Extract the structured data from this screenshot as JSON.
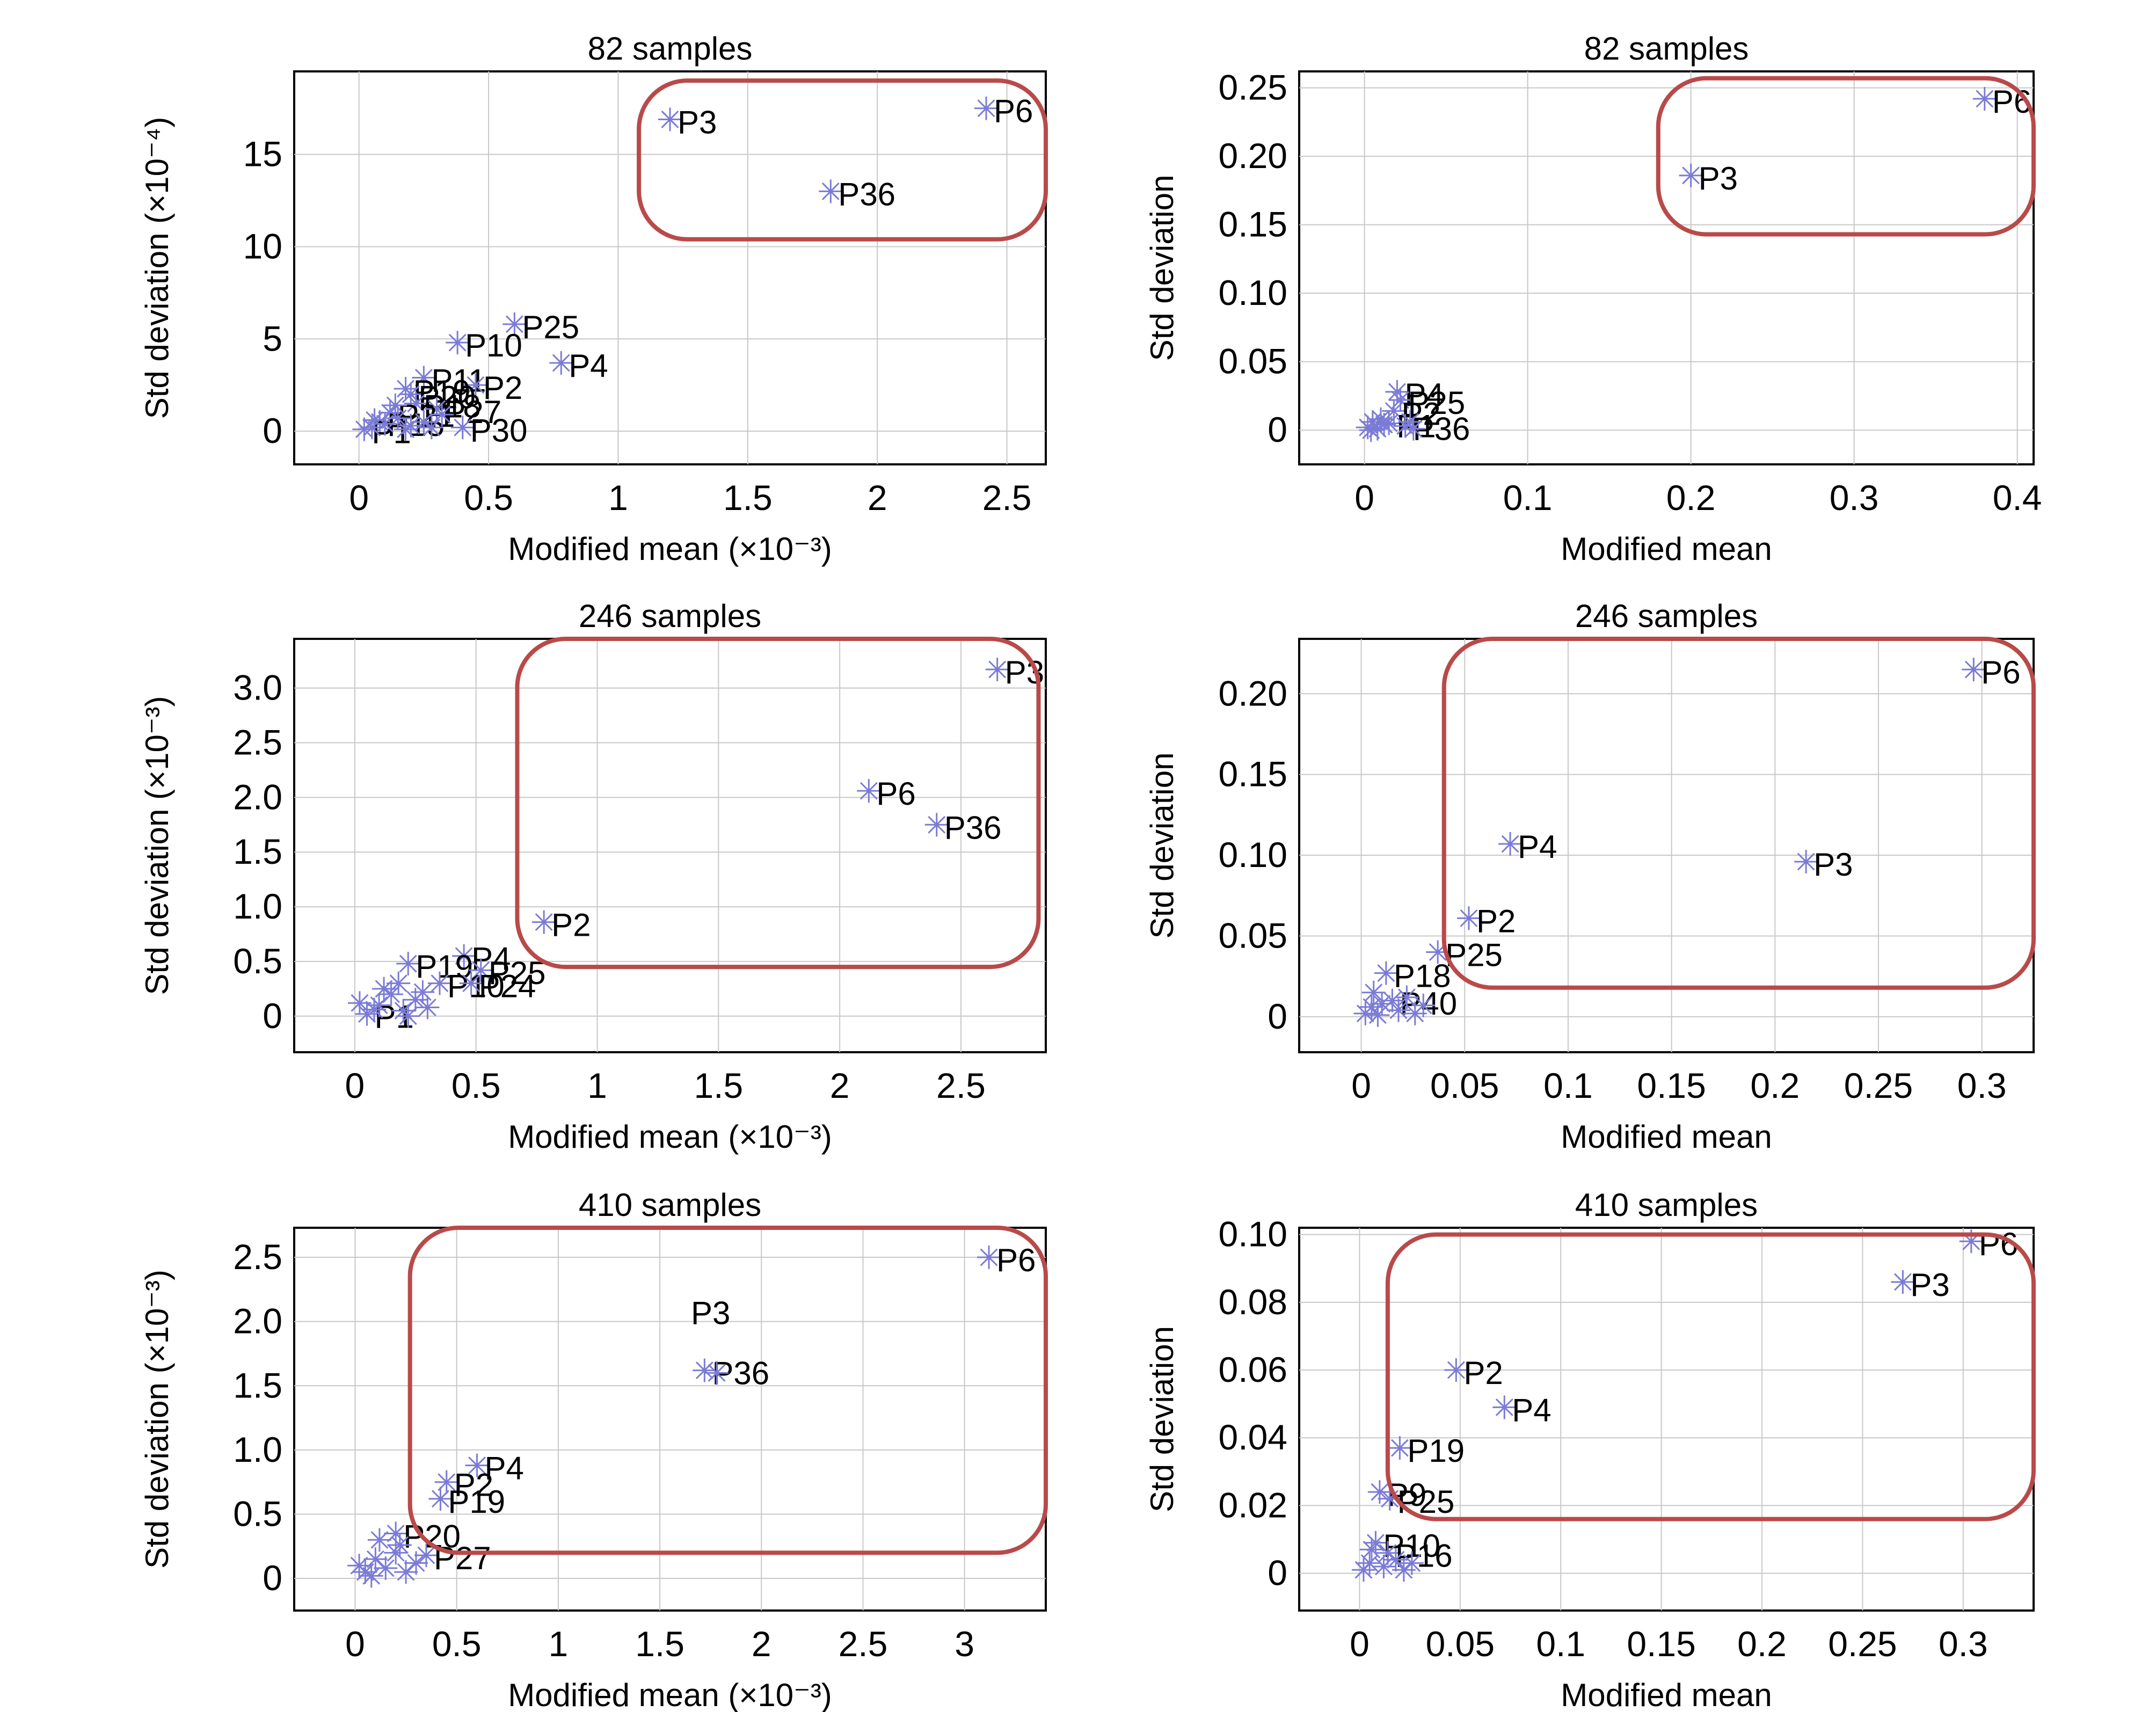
{
  "style": {
    "marker_color": "#7b7bd6",
    "highlight_box_color": "#b94a4a",
    "grid_color": "#c8c8c8",
    "marker": "asterisk"
  },
  "chart_data": [
    {
      "type": "scatter",
      "title": "82 samples",
      "xlabel": "Modified mean (×10⁻³)",
      "ylabel": "Std deviation (×10⁻⁴)",
      "xlim": [
        -0.25,
        2.65
      ],
      "ylim": [
        -1.8,
        19.5
      ],
      "xticks": [
        0,
        0.5,
        1,
        1.5,
        2,
        2.5
      ],
      "xtick_labels": [
        "0",
        "0.5",
        "1",
        "1.5",
        "2",
        "2.5"
      ],
      "yticks": [
        0,
        5,
        10,
        15
      ],
      "ytick_labels": [
        "0",
        "5",
        "10",
        "15"
      ],
      "grid": true,
      "highlight": {
        "x": [
          1.08,
          2.65
        ],
        "y": [
          10.4,
          19.0
        ]
      },
      "points": [
        {
          "x": 2.42,
          "y": 17.5,
          "label": "P6"
        },
        {
          "x": 1.2,
          "y": 16.9,
          "label": "P3"
        },
        {
          "x": 1.82,
          "y": 13.0,
          "label": "P36"
        },
        {
          "x": 0.6,
          "y": 5.8,
          "label": "P25"
        },
        {
          "x": 0.38,
          "y": 4.8,
          "label": "P10"
        },
        {
          "x": 0.78,
          "y": 3.7,
          "label": "P4"
        },
        {
          "x": 0.25,
          "y": 2.9,
          "label": "P11"
        },
        {
          "x": 0.45,
          "y": 2.5,
          "label": "P2"
        },
        {
          "x": 0.18,
          "y": 2.3,
          "label": "P19"
        },
        {
          "x": 0.2,
          "y": 2.0,
          "label": "P20"
        },
        {
          "x": 0.22,
          "y": 1.5,
          "label": "P18"
        },
        {
          "x": 0.3,
          "y": 1.2,
          "label": "P27"
        },
        {
          "x": 0.12,
          "y": 1.0,
          "label": "P21"
        },
        {
          "x": 0.4,
          "y": 0.2,
          "label": "P30"
        },
        {
          "x": 0.08,
          "y": 0.5,
          "label": "P15"
        },
        {
          "x": 0.02,
          "y": 0.1,
          "label": "P1"
        },
        {
          "x": 0.05,
          "y": 0.2,
          "label": ""
        },
        {
          "x": 0.1,
          "y": 0.4,
          "label": ""
        },
        {
          "x": 0.15,
          "y": 0.7,
          "label": ""
        },
        {
          "x": 0.2,
          "y": 0.3,
          "label": ""
        },
        {
          "x": 0.25,
          "y": 0.5,
          "label": ""
        },
        {
          "x": 0.18,
          "y": 0.1,
          "label": ""
        },
        {
          "x": 0.28,
          "y": 0.2,
          "label": ""
        },
        {
          "x": 0.06,
          "y": 0.6,
          "label": ""
        },
        {
          "x": 0.14,
          "y": 1.4,
          "label": ""
        },
        {
          "x": 0.32,
          "y": 0.9,
          "label": ""
        }
      ]
    },
    {
      "type": "scatter",
      "title": "82 samples",
      "xlabel": "Modified mean",
      "ylabel": "Std deviation",
      "xlim": [
        -0.04,
        0.41
      ],
      "ylim": [
        -0.025,
        0.262
      ],
      "xticks": [
        0,
        0.1,
        0.2,
        0.3,
        0.4
      ],
      "xtick_labels": [
        "0",
        "0.1",
        "0.2",
        "0.3",
        "0.4"
      ],
      "yticks": [
        0,
        0.05,
        0.1,
        0.15,
        0.2,
        0.25
      ],
      "ytick_labels": [
        "0",
        "0.05",
        "0.10",
        "0.15",
        "0.20",
        "0.25"
      ],
      "grid": true,
      "highlight": {
        "x": [
          0.18,
          0.41
        ],
        "y": [
          0.143,
          0.257
        ]
      },
      "points": [
        {
          "x": 0.38,
          "y": 0.242,
          "label": "P6"
        },
        {
          "x": 0.2,
          "y": 0.186,
          "label": "P3"
        },
        {
          "x": 0.02,
          "y": 0.028,
          "label": "P4"
        },
        {
          "x": 0.022,
          "y": 0.022,
          "label": "P25"
        },
        {
          "x": 0.018,
          "y": 0.014,
          "label": "P2"
        },
        {
          "x": 0.015,
          "y": 0.005,
          "label": "P1"
        },
        {
          "x": 0.025,
          "y": 0.003,
          "label": "P36"
        },
        {
          "x": 0.002,
          "y": 0.002,
          "label": ""
        },
        {
          "x": 0.005,
          "y": 0.006,
          "label": ""
        },
        {
          "x": 0.008,
          "y": 0.001,
          "label": ""
        },
        {
          "x": 0.01,
          "y": 0.008,
          "label": ""
        },
        {
          "x": 0.012,
          "y": 0.004,
          "label": ""
        },
        {
          "x": 0.004,
          "y": 0.0,
          "label": ""
        },
        {
          "x": 0.028,
          "y": 0.006,
          "label": ""
        },
        {
          "x": 0.03,
          "y": 0.001,
          "label": ""
        }
      ]
    },
    {
      "type": "scatter",
      "title": "246 samples",
      "xlabel": "Modified mean (×10⁻³)",
      "ylabel": "Std deviation (×10⁻³)",
      "xlim": [
        -0.25,
        2.85
      ],
      "ylim": [
        -0.33,
        3.45
      ],
      "xticks": [
        0,
        0.5,
        1,
        1.5,
        2,
        2.5
      ],
      "xtick_labels": [
        "0",
        "0.5",
        "1",
        "1.5",
        "2",
        "2.5"
      ],
      "yticks": [
        0,
        0.5,
        1.0,
        1.5,
        2.0,
        2.5,
        3.0
      ],
      "ytick_labels": [
        "0",
        "0.5",
        "1.0",
        "1.5",
        "2.0",
        "2.5",
        "3.0"
      ],
      "grid": true,
      "highlight": {
        "x": [
          0.67,
          2.82
        ],
        "y": [
          0.45,
          3.45
        ]
      },
      "points": [
        {
          "x": 2.65,
          "y": 3.17,
          "label": "P3"
        },
        {
          "x": 2.12,
          "y": 2.06,
          "label": "P6"
        },
        {
          "x": 2.4,
          "y": 1.75,
          "label": "P36"
        },
        {
          "x": 0.78,
          "y": 0.86,
          "label": "P2"
        },
        {
          "x": 0.45,
          "y": 0.55,
          "label": "P4"
        },
        {
          "x": 0.22,
          "y": 0.48,
          "label": "P19"
        },
        {
          "x": 0.52,
          "y": 0.42,
          "label": "P25"
        },
        {
          "x": 0.35,
          "y": 0.3,
          "label": "P10"
        },
        {
          "x": 0.48,
          "y": 0.3,
          "label": "P24"
        },
        {
          "x": 0.05,
          "y": 0.02,
          "label": "P1"
        },
        {
          "x": 0.1,
          "y": 0.1,
          "label": ""
        },
        {
          "x": 0.15,
          "y": 0.2,
          "label": ""
        },
        {
          "x": 0.2,
          "y": 0.05,
          "label": ""
        },
        {
          "x": 0.25,
          "y": 0.15,
          "label": ""
        },
        {
          "x": 0.3,
          "y": 0.08,
          "label": ""
        },
        {
          "x": 0.18,
          "y": 0.3,
          "label": ""
        },
        {
          "x": 0.12,
          "y": 0.25,
          "label": ""
        },
        {
          "x": 0.28,
          "y": 0.22,
          "label": ""
        },
        {
          "x": 0.08,
          "y": 0.06,
          "label": ""
        },
        {
          "x": 0.22,
          "y": 0.0,
          "label": ""
        },
        {
          "x": 0.02,
          "y": 0.12,
          "label": ""
        }
      ]
    },
    {
      "type": "scatter",
      "title": "246 samples",
      "xlabel": "Modified mean",
      "ylabel": "Std deviation",
      "xlim": [
        -0.03,
        0.325
      ],
      "ylim": [
        -0.022,
        0.234
      ],
      "xticks": [
        0,
        0.05,
        0.1,
        0.15,
        0.2,
        0.25,
        0.3
      ],
      "xtick_labels": [
        "0",
        "0.05",
        "0.1",
        "0.15",
        "0.2",
        "0.25",
        "0.3"
      ],
      "yticks": [
        0,
        0.05,
        0.1,
        0.15,
        0.2
      ],
      "ytick_labels": [
        "0",
        "0.05",
        "0.10",
        "0.15",
        "0.20"
      ],
      "grid": true,
      "highlight": {
        "x": [
          0.04,
          0.325
        ],
        "y": [
          0.018,
          0.234
        ]
      },
      "points": [
        {
          "x": 0.296,
          "y": 0.215,
          "label": "P6"
        },
        {
          "x": 0.072,
          "y": 0.107,
          "label": "P4"
        },
        {
          "x": 0.215,
          "y": 0.096,
          "label": "P3"
        },
        {
          "x": 0.052,
          "y": 0.061,
          "label": "P2"
        },
        {
          "x": 0.037,
          "y": 0.04,
          "label": "P25"
        },
        {
          "x": 0.012,
          "y": 0.027,
          "label": "P18"
        },
        {
          "x": 0.015,
          "y": 0.01,
          "label": "P40"
        },
        {
          "x": 0.002,
          "y": 0.002,
          "label": ""
        },
        {
          "x": 0.005,
          "y": 0.006,
          "label": ""
        },
        {
          "x": 0.008,
          "y": 0.001,
          "label": ""
        },
        {
          "x": 0.01,
          "y": 0.008,
          "label": ""
        },
        {
          "x": 0.018,
          "y": 0.004,
          "label": ""
        },
        {
          "x": 0.022,
          "y": 0.012,
          "label": ""
        },
        {
          "x": 0.026,
          "y": 0.002,
          "label": ""
        },
        {
          "x": 0.03,
          "y": 0.007,
          "label": ""
        },
        {
          "x": 0.006,
          "y": 0.015,
          "label": ""
        }
      ]
    },
    {
      "type": "scatter",
      "title": "410 samples",
      "xlabel": "Modified mean (×10⁻³)",
      "ylabel": "Std deviation (×10⁻³)",
      "xlim": [
        -0.3,
        3.4
      ],
      "ylim": [
        -0.25,
        2.73
      ],
      "xticks": [
        0,
        0.5,
        1,
        1.5,
        2,
        2.5,
        3
      ],
      "xtick_labels": [
        "0",
        "0.5",
        "1",
        "1.5",
        "2",
        "2.5",
        "3"
      ],
      "yticks": [
        0,
        0.5,
        1.0,
        1.5,
        2.0,
        2.5
      ],
      "ytick_labels": [
        "0",
        "0.5",
        "1.0",
        "1.5",
        "2.0",
        "2.5"
      ],
      "grid": true,
      "highlight": {
        "x": [
          0.27,
          3.4
        ],
        "y": [
          0.2,
          2.73
        ]
      },
      "points": [
        {
          "x": 3.12,
          "y": 2.5,
          "label": "P6"
        },
        {
          "x": 1.72,
          "y": 1.62,
          "label": "P36"
        },
        {
          "x": 1.78,
          "y": 1.6,
          "label": ""
        },
        {
          "x": 0.6,
          "y": 0.88,
          "label": "P4"
        },
        {
          "x": 0.45,
          "y": 0.75,
          "label": "P2"
        },
        {
          "x": 0.42,
          "y": 0.62,
          "label": "P19"
        },
        {
          "x": 0.2,
          "y": 0.35,
          "label": "P20"
        },
        {
          "x": 0.35,
          "y": 0.18,
          "label": "P27"
        },
        {
          "x": 0.05,
          "y": 0.05,
          "label": ""
        },
        {
          "x": 0.1,
          "y": 0.15,
          "label": ""
        },
        {
          "x": 0.15,
          "y": 0.08,
          "label": ""
        },
        {
          "x": 0.2,
          "y": 0.2,
          "label": ""
        },
        {
          "x": 0.25,
          "y": 0.05,
          "label": ""
        },
        {
          "x": 0.3,
          "y": 0.12,
          "label": ""
        },
        {
          "x": 0.12,
          "y": 0.3,
          "label": ""
        },
        {
          "x": 0.08,
          "y": 0.02,
          "label": ""
        },
        {
          "x": 0.22,
          "y": 0.26,
          "label": ""
        },
        {
          "x": 0.02,
          "y": 0.1,
          "label": ""
        }
      ],
      "annotations": [
        {
          "text": "P3",
          "x": 1.75,
          "y": 1.98
        }
      ]
    },
    {
      "type": "scatter",
      "title": "410 samples",
      "xlabel": "Modified mean",
      "ylabel": "Std deviation",
      "xlim": [
        -0.03,
        0.335
      ],
      "ylim": [
        -0.011,
        0.102
      ],
      "xticks": [
        0,
        0.05,
        0.1,
        0.15,
        0.2,
        0.25,
        0.3
      ],
      "xtick_labels": [
        "0",
        "0.05",
        "0.1",
        "0.15",
        "0.2",
        "0.25",
        "0.3"
      ],
      "yticks": [
        0,
        0.02,
        0.04,
        0.06,
        0.08,
        0.1
      ],
      "ytick_labels": [
        "0",
        "0.02",
        "0.04",
        "0.06",
        "0.08",
        "0.10"
      ],
      "grid": true,
      "highlight": {
        "x": [
          0.014,
          0.335
        ],
        "y": [
          0.016,
          0.1
        ]
      },
      "points": [
        {
          "x": 0.304,
          "y": 0.098,
          "label": "P6"
        },
        {
          "x": 0.27,
          "y": 0.086,
          "label": "P3"
        },
        {
          "x": 0.048,
          "y": 0.06,
          "label": "P2"
        },
        {
          "x": 0.072,
          "y": 0.049,
          "label": "P4"
        },
        {
          "x": 0.02,
          "y": 0.037,
          "label": "P19"
        },
        {
          "x": 0.01,
          "y": 0.024,
          "label": "P9"
        },
        {
          "x": 0.015,
          "y": 0.022,
          "label": "P25"
        },
        {
          "x": 0.008,
          "y": 0.009,
          "label": "P10"
        },
        {
          "x": 0.014,
          "y": 0.006,
          "label": "P16"
        },
        {
          "x": 0.002,
          "y": 0.001,
          "label": ""
        },
        {
          "x": 0.005,
          "y": 0.003,
          "label": ""
        },
        {
          "x": 0.012,
          "y": 0.002,
          "label": ""
        },
        {
          "x": 0.018,
          "y": 0.004,
          "label": ""
        },
        {
          "x": 0.022,
          "y": 0.001,
          "label": ""
        },
        {
          "x": 0.026,
          "y": 0.003,
          "label": ""
        },
        {
          "x": 0.006,
          "y": 0.007,
          "label": ""
        }
      ]
    }
  ]
}
